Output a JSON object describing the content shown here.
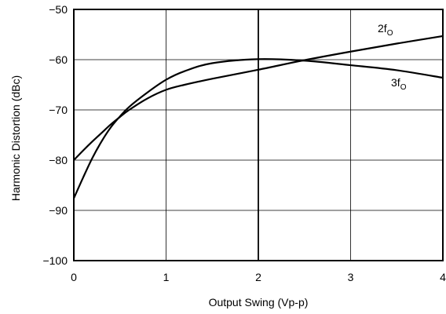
{
  "chart_data": {
    "type": "line",
    "title": "",
    "xlabel": "Output Swing (Vp-p)",
    "ylabel": "Harmonic Distortion (dBc)",
    "xlim": [
      0,
      4
    ],
    "ylim": [
      -100,
      -50
    ],
    "xticks": [
      0,
      1,
      2,
      3,
      4
    ],
    "yticks": [
      -50,
      -60,
      -70,
      -80,
      -90,
      -100
    ],
    "xtick_labels": [
      "0",
      "1",
      "2",
      "3",
      "4"
    ],
    "ytick_labels": [
      "−50",
      "−60",
      "−70",
      "−80",
      "−90",
      "−100"
    ],
    "grid": true,
    "series": [
      {
        "name": "2fO",
        "label_main": "2f",
        "label_sub": "O",
        "x": [
          0,
          0.1,
          0.2,
          0.3,
          0.4,
          0.5,
          0.6,
          0.8,
          1.0,
          1.2,
          1.5,
          2.0,
          2.5,
          3.0,
          3.5,
          4.0
        ],
        "y": [
          -80.0,
          -78.1,
          -76.3,
          -74.6,
          -72.9,
          -71.4,
          -70.0,
          -67.7,
          -66.0,
          -65.0,
          -63.8,
          -62.0,
          -60.1,
          -58.4,
          -56.8,
          -55.3
        ]
      },
      {
        "name": "3fO",
        "label_main": "3f",
        "label_sub": "O",
        "x": [
          0,
          0.1,
          0.2,
          0.3,
          0.4,
          0.5,
          0.6,
          0.8,
          1.0,
          1.2,
          1.5,
          2.0,
          2.5,
          3.0,
          3.5,
          4.0
        ],
        "y": [
          -87.6,
          -83.5,
          -79.6,
          -76.3,
          -73.5,
          -71.3,
          -69.4,
          -66.5,
          -64.0,
          -62.3,
          -60.7,
          -59.9,
          -60.2,
          -61.1,
          -62.1,
          -63.6
        ]
      }
    ]
  }
}
